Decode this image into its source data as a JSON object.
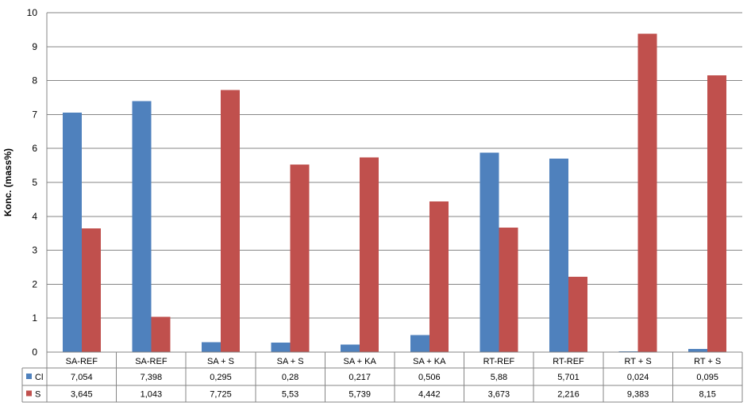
{
  "chart_data": {
    "type": "bar",
    "title": "",
    "xlabel": "",
    "ylabel": "Konc. (mass%)",
    "ylim": [
      0,
      10
    ],
    "y_ticks": [
      "0",
      "1",
      "2",
      "3",
      "4",
      "5",
      "6",
      "7",
      "8",
      "9",
      "10"
    ],
    "grid": true,
    "legend": "data-table",
    "categories": [
      "SA-REF",
      "SA-REF",
      "SA + S",
      "SA + S",
      "SA + KA",
      "SA + KA",
      "RT-REF",
      "RT-REF",
      "RT + S",
      "RT + S"
    ],
    "series": [
      {
        "name": "Cl",
        "color": "#4f81bd",
        "values": [
          7.054,
          7.398,
          0.295,
          0.28,
          0.217,
          0.506,
          5.88,
          5.701,
          0.024,
          0.095
        ],
        "labels": [
          "7,054",
          "7,398",
          "0,295",
          "0,28",
          "0,217",
          "0,506",
          "5,88",
          "5,701",
          "0,024",
          "0,095"
        ]
      },
      {
        "name": "S",
        "color": "#c0504d",
        "values": [
          3.645,
          1.043,
          7.725,
          5.53,
          5.739,
          4.442,
          3.673,
          2.216,
          9.383,
          8.15
        ],
        "labels": [
          "3,645",
          "1,043",
          "7,725",
          "5,53",
          "5,739",
          "4,442",
          "3,673",
          "2,216",
          "9,383",
          "8,15"
        ]
      }
    ]
  }
}
